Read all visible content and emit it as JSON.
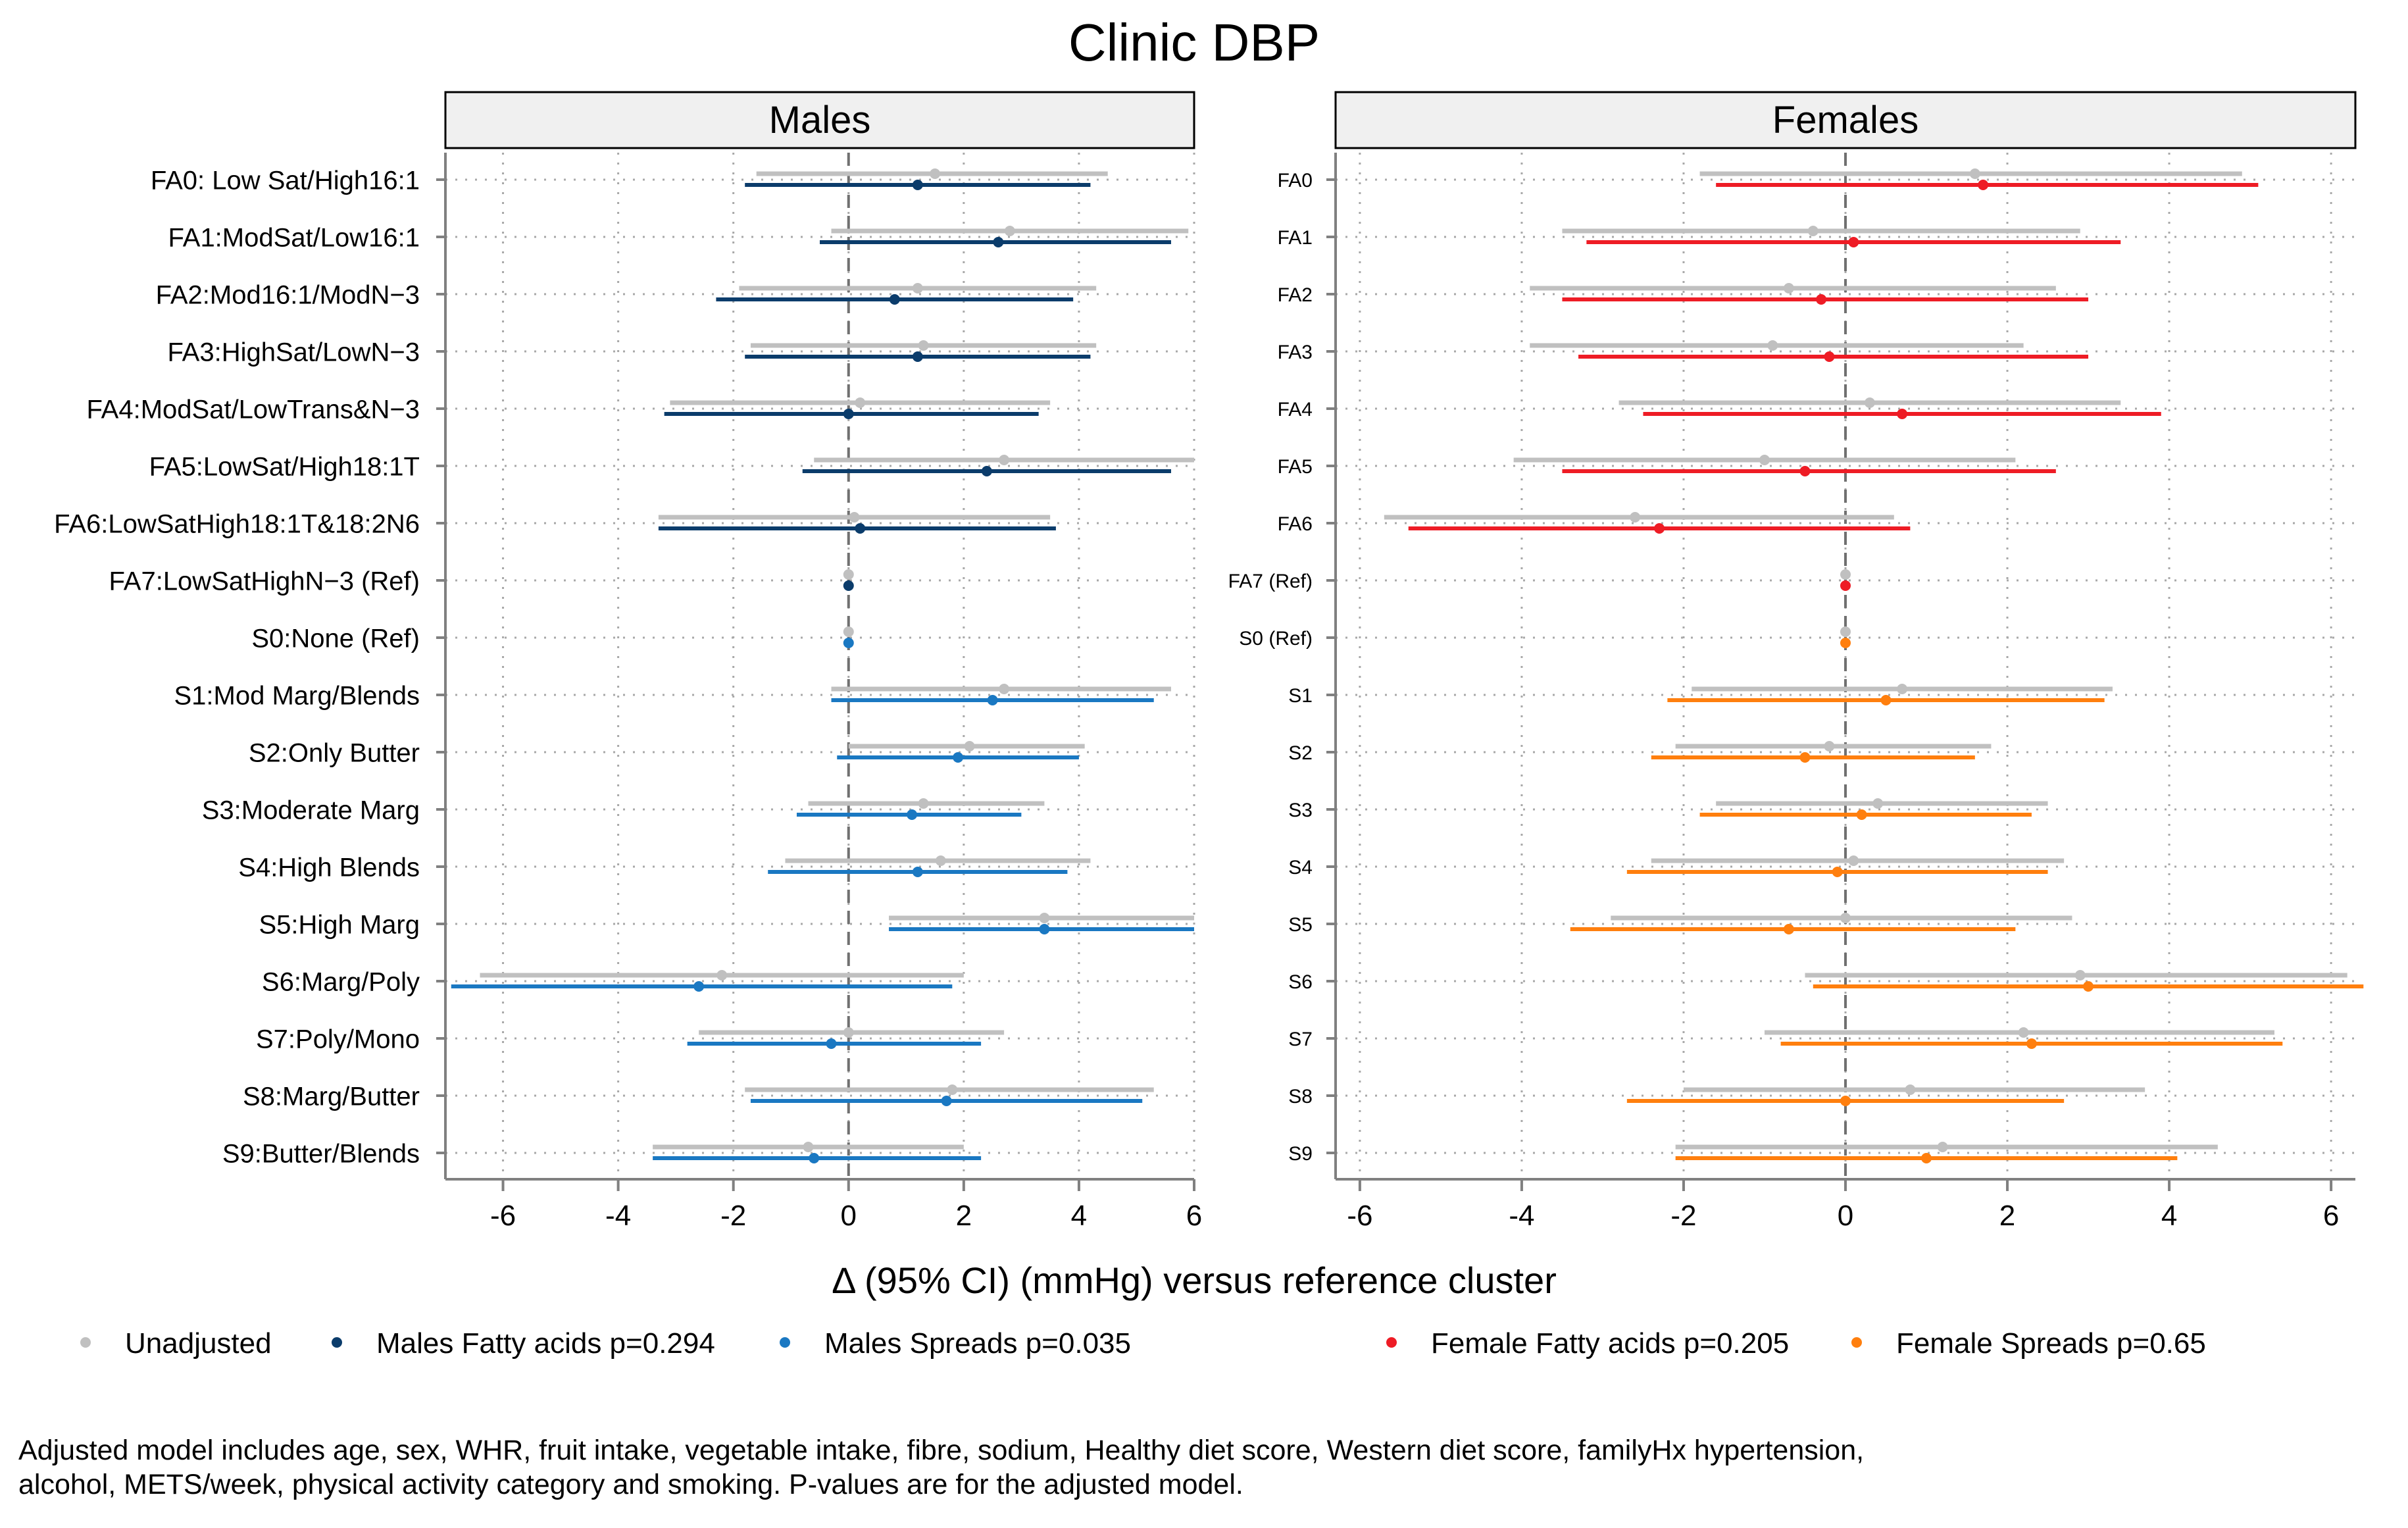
{
  "title": "Clinic DBP",
  "x_axis_label": "Δ (95% CI) (mmHg) versus reference cluster",
  "colors": {
    "unadjusted": "#c0c0c0",
    "males_fa": "#0b3c6b",
    "males_spreads": "#1a78c2",
    "females_fa": "#ee1c25",
    "females_spreads": "#ff7f0e",
    "reference_line": "#707070",
    "gridline": "#a8a8a8",
    "axis": "#808080",
    "strip_fill": "#f0f0f0"
  },
  "legend": [
    {
      "label": "Unadjusted",
      "color_key": "unadjusted"
    },
    {
      "label": "Males Fatty acids p=0.294",
      "color_key": "males_fa"
    },
    {
      "label": "Males Spreads p=0.035",
      "color_key": "males_spreads"
    },
    {
      "label": "Female Fatty acids p=0.205",
      "color_key": "females_fa"
    },
    {
      "label": "Female Spreads p=0.65",
      "color_key": "females_spreads"
    }
  ],
  "footnote": [
    "Adjusted model includes age, sex, WHR, fruit intake, vegetable intake, fibre, sodium, Healthy diet score, Western diet score, familyHx hypertension,",
    "alcohol, METS/week, physical activity category and smoking. P-values are for the adjusted model."
  ],
  "chart_data": [
    {
      "type": "forest",
      "panel": "Males",
      "xlim": [
        -7,
        6
      ],
      "xticks": [
        -6,
        -4,
        -2,
        0,
        2,
        4,
        6
      ],
      "reference_value": 0,
      "rows": [
        {
          "label": "FA0: Low Sat/High16:1",
          "group": "fa",
          "unadj": {
            "est": 1.5,
            "lo": -1.6,
            "hi": 4.5
          },
          "adj": {
            "est": 1.2,
            "lo": -1.8,
            "hi": 4.2
          }
        },
        {
          "label": "FA1:ModSat/Low16:1",
          "group": "fa",
          "unadj": {
            "est": 2.8,
            "lo": -0.3,
            "hi": 5.9
          },
          "adj": {
            "est": 2.6,
            "lo": -0.5,
            "hi": 5.6
          }
        },
        {
          "label": "FA2:Mod16:1/ModN−3",
          "group": "fa",
          "unadj": {
            "est": 1.2,
            "lo": -1.9,
            "hi": 4.3
          },
          "adj": {
            "est": 0.8,
            "lo": -2.3,
            "hi": 3.9
          }
        },
        {
          "label": "FA3:HighSat/LowN−3",
          "group": "fa",
          "unadj": {
            "est": 1.3,
            "lo": -1.7,
            "hi": 4.3
          },
          "adj": {
            "est": 1.2,
            "lo": -1.8,
            "hi": 4.2
          }
        },
        {
          "label": "FA4:ModSat/LowTrans&N−3",
          "group": "fa",
          "unadj": {
            "est": 0.2,
            "lo": -3.1,
            "hi": 3.5
          },
          "adj": {
            "est": 0.0,
            "lo": -3.2,
            "hi": 3.3
          }
        },
        {
          "label": "FA5:LowSat/High18:1T",
          "group": "fa",
          "unadj": {
            "est": 2.7,
            "lo": -0.6,
            "hi": 6.0
          },
          "adj": {
            "est": 2.4,
            "lo": -0.8,
            "hi": 5.6
          }
        },
        {
          "label": "FA6:LowSatHigh18:1T&18:2N6",
          "group": "fa",
          "unadj": {
            "est": 0.1,
            "lo": -3.3,
            "hi": 3.5
          },
          "adj": {
            "est": 0.2,
            "lo": -3.3,
            "hi": 3.6
          }
        },
        {
          "label": "FA7:LowSatHighN−3 (Ref)",
          "group": "fa",
          "unadj": {
            "est": 0,
            "lo": 0,
            "hi": 0
          },
          "adj": {
            "est": 0,
            "lo": 0,
            "hi": 0
          }
        },
        {
          "label": "S0:None (Ref)",
          "group": "spreads",
          "unadj": {
            "est": 0,
            "lo": 0,
            "hi": 0
          },
          "adj": {
            "est": 0,
            "lo": 0,
            "hi": 0
          }
        },
        {
          "label": "S1:Mod Marg/Blends",
          "group": "spreads",
          "unadj": {
            "est": 2.7,
            "lo": -0.3,
            "hi": 5.6
          },
          "adj": {
            "est": 2.5,
            "lo": -0.3,
            "hi": 5.3
          }
        },
        {
          "label": "S2:Only Butter",
          "group": "spreads",
          "unadj": {
            "est": 2.1,
            "lo": 0.0,
            "hi": 4.1
          },
          "adj": {
            "est": 1.9,
            "lo": -0.2,
            "hi": 4.0
          }
        },
        {
          "label": "S3:Moderate Marg",
          "group": "spreads",
          "unadj": {
            "est": 1.3,
            "lo": -0.7,
            "hi": 3.4
          },
          "adj": {
            "est": 1.1,
            "lo": -0.9,
            "hi": 3.0
          }
        },
        {
          "label": "S4:High Blends",
          "group": "spreads",
          "unadj": {
            "est": 1.6,
            "lo": -1.1,
            "hi": 4.2
          },
          "adj": {
            "est": 1.2,
            "lo": -1.4,
            "hi": 3.8
          }
        },
        {
          "label": "S5:High Marg",
          "group": "spreads",
          "unadj": {
            "est": 3.4,
            "lo": 0.7,
            "hi": 6.0
          },
          "adj": {
            "est": 3.4,
            "lo": 0.7,
            "hi": 6.0
          }
        },
        {
          "label": "S6:Marg/Poly",
          "group": "spreads",
          "unadj": {
            "est": -2.2,
            "lo": -6.4,
            "hi": 2.0
          },
          "adj": {
            "est": -2.6,
            "lo": -6.9,
            "hi": 1.8
          }
        },
        {
          "label": "S7:Poly/Mono",
          "group": "spreads",
          "unadj": {
            "est": 0.0,
            "lo": -2.6,
            "hi": 2.7
          },
          "adj": {
            "est": -0.3,
            "lo": -2.8,
            "hi": 2.3
          }
        },
        {
          "label": "S8:Marg/Butter",
          "group": "spreads",
          "unadj": {
            "est": 1.8,
            "lo": -1.8,
            "hi": 5.3
          },
          "adj": {
            "est": 1.7,
            "lo": -1.7,
            "hi": 5.1
          }
        },
        {
          "label": "S9:Butter/Blends",
          "group": "spreads",
          "unadj": {
            "est": -0.7,
            "lo": -3.4,
            "hi": 2.0
          },
          "adj": {
            "est": -0.6,
            "lo": -3.4,
            "hi": 2.3
          }
        }
      ]
    },
    {
      "type": "forest",
      "panel": "Females",
      "xlim": [
        -6.3,
        6.3
      ],
      "xticks": [
        -6,
        -4,
        -2,
        0,
        2,
        4,
        6
      ],
      "reference_value": 0,
      "rows": [
        {
          "label": "FA0",
          "group": "fa",
          "unadj": {
            "est": 1.6,
            "lo": -1.8,
            "hi": 4.9
          },
          "adj": {
            "est": 1.7,
            "lo": -1.6,
            "hi": 5.1
          }
        },
        {
          "label": "FA1",
          "group": "fa",
          "unadj": {
            "est": -0.4,
            "lo": -3.5,
            "hi": 2.9
          },
          "adj": {
            "est": 0.1,
            "lo": -3.2,
            "hi": 3.4
          }
        },
        {
          "label": "FA2",
          "group": "fa",
          "unadj": {
            "est": -0.7,
            "lo": -3.9,
            "hi": 2.6
          },
          "adj": {
            "est": -0.3,
            "lo": -3.5,
            "hi": 3.0
          }
        },
        {
          "label": "FA3",
          "group": "fa",
          "unadj": {
            "est": -0.9,
            "lo": -3.9,
            "hi": 2.2
          },
          "adj": {
            "est": -0.2,
            "lo": -3.3,
            "hi": 3.0
          }
        },
        {
          "label": "FA4",
          "group": "fa",
          "unadj": {
            "est": 0.3,
            "lo": -2.8,
            "hi": 3.4
          },
          "adj": {
            "est": 0.7,
            "lo": -2.5,
            "hi": 3.9
          }
        },
        {
          "label": "FA5",
          "group": "fa",
          "unadj": {
            "est": -1.0,
            "lo": -4.1,
            "hi": 2.1
          },
          "adj": {
            "est": -0.5,
            "lo": -3.5,
            "hi": 2.6
          }
        },
        {
          "label": "FA6",
          "group": "fa",
          "unadj": {
            "est": -2.6,
            "lo": -5.7,
            "hi": 0.6
          },
          "adj": {
            "est": -2.3,
            "lo": -5.4,
            "hi": 0.8
          }
        },
        {
          "label": "FA7 (Ref)",
          "group": "fa",
          "unadj": {
            "est": 0,
            "lo": 0,
            "hi": 0
          },
          "adj": {
            "est": 0,
            "lo": 0,
            "hi": 0
          }
        },
        {
          "label": "S0 (Ref)",
          "group": "spreads",
          "unadj": {
            "est": 0,
            "lo": 0,
            "hi": 0
          },
          "adj": {
            "est": 0,
            "lo": 0,
            "hi": 0
          }
        },
        {
          "label": "S1",
          "group": "spreads",
          "unadj": {
            "est": 0.7,
            "lo": -1.9,
            "hi": 3.3
          },
          "adj": {
            "est": 0.5,
            "lo": -2.2,
            "hi": 3.2
          }
        },
        {
          "label": "S2",
          "group": "spreads",
          "unadj": {
            "est": -0.2,
            "lo": -2.1,
            "hi": 1.8
          },
          "adj": {
            "est": -0.5,
            "lo": -2.4,
            "hi": 1.6
          }
        },
        {
          "label": "S3",
          "group": "spreads",
          "unadj": {
            "est": 0.4,
            "lo": -1.6,
            "hi": 2.5
          },
          "adj": {
            "est": 0.2,
            "lo": -1.8,
            "hi": 2.3
          }
        },
        {
          "label": "S4",
          "group": "spreads",
          "unadj": {
            "est": 0.1,
            "lo": -2.4,
            "hi": 2.7
          },
          "adj": {
            "est": -0.1,
            "lo": -2.7,
            "hi": 2.5
          }
        },
        {
          "label": "S5",
          "group": "spreads",
          "unadj": {
            "est": -0.0,
            "lo": -2.9,
            "hi": 2.8
          },
          "adj": {
            "est": -0.7,
            "lo": -3.4,
            "hi": 2.1
          }
        },
        {
          "label": "S6",
          "group": "spreads",
          "unadj": {
            "est": 2.9,
            "lo": -0.5,
            "hi": 6.2
          },
          "adj": {
            "est": 3.0,
            "lo": -0.4,
            "hi": 6.4
          }
        },
        {
          "label": "S7",
          "group": "spreads",
          "unadj": {
            "est": 2.2,
            "lo": -1.0,
            "hi": 5.3
          },
          "adj": {
            "est": 2.3,
            "lo": -0.8,
            "hi": 5.4
          }
        },
        {
          "label": "S8",
          "group": "spreads",
          "unadj": {
            "est": 0.8,
            "lo": -2.0,
            "hi": 3.7
          },
          "adj": {
            "est": 0.0,
            "lo": -2.7,
            "hi": 2.7
          }
        },
        {
          "label": "S9",
          "group": "spreads",
          "unadj": {
            "est": 1.2,
            "lo": -2.1,
            "hi": 4.6
          },
          "adj": {
            "est": 1.0,
            "lo": -2.1,
            "hi": 4.1
          }
        }
      ]
    }
  ]
}
